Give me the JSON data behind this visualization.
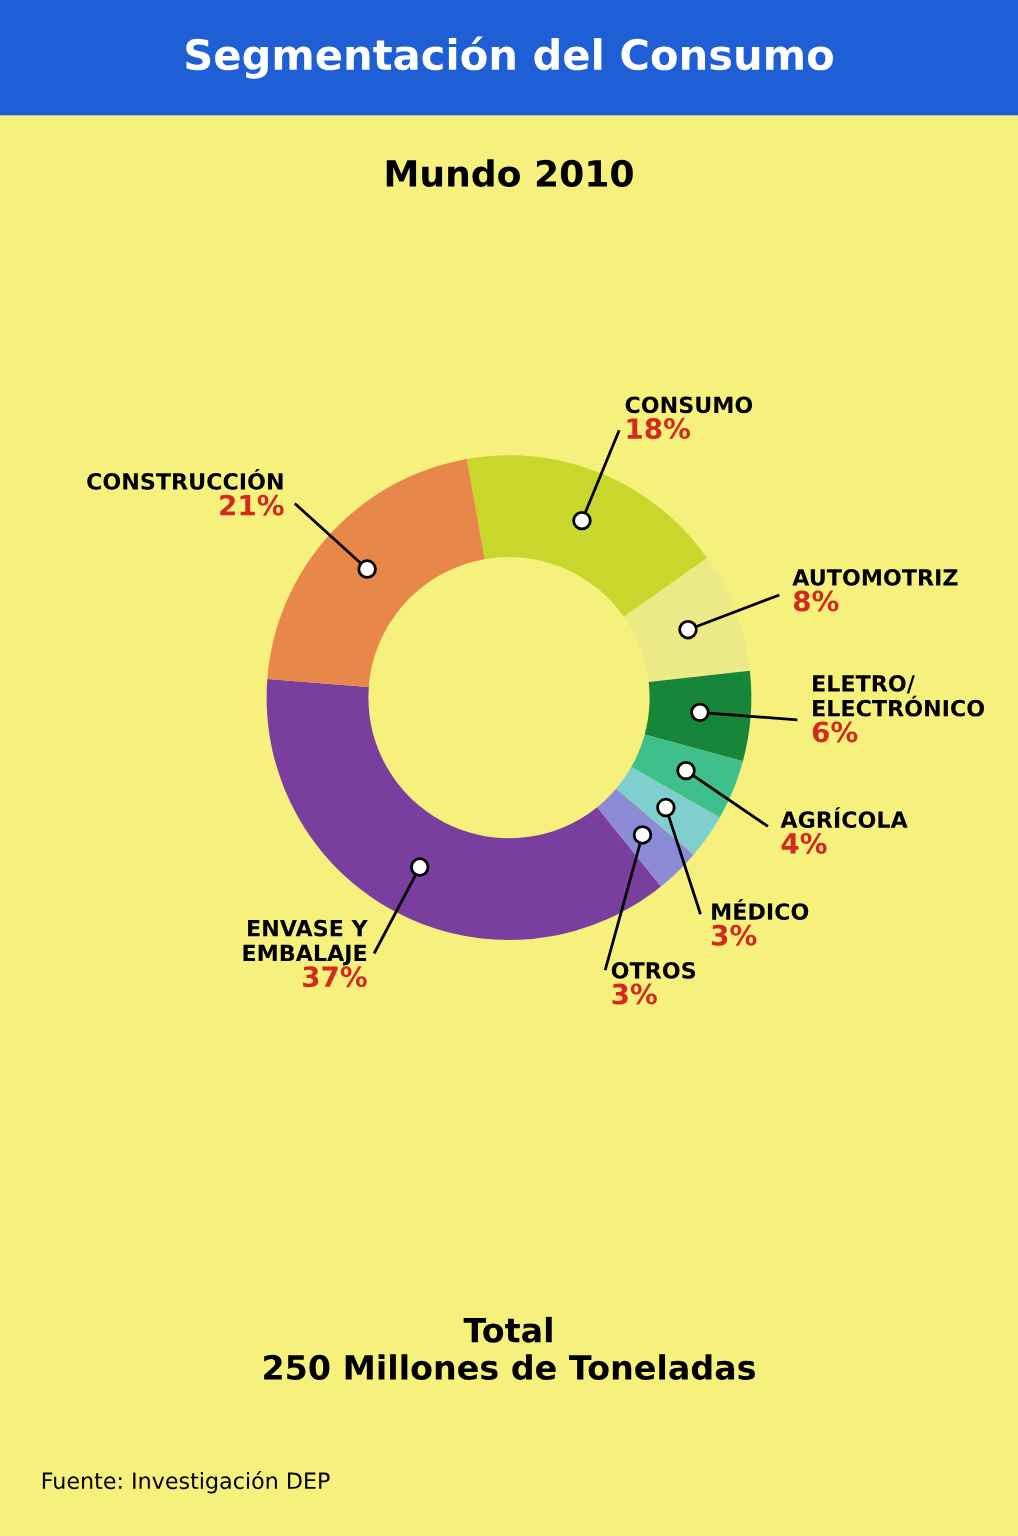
{
  "chart_data": {
    "type": "donut",
    "title": "Segmentación del Consumo",
    "subtitle": "Mundo 2010",
    "categories": [
      "CONSUMO",
      "AUTOMOTRIZ",
      "ELETRO/\nELECTRÓNICO",
      "AGRÍCOLA",
      "MÉDICO",
      "OTROS",
      "ENVASE Y\nEMBALAJE",
      "CONSTRUCCIÓN"
    ],
    "values": [
      18,
      8,
      6,
      4,
      3,
      3,
      37,
      21
    ],
    "value_labels": [
      "18%",
      "8%",
      "6%",
      "4%",
      "3%",
      "3%",
      "37%",
      "21%"
    ],
    "colors": [
      "#c9d62b",
      "#ecea86",
      "#17853a",
      "#3fbf8c",
      "#7fcfcf",
      "#8c8cd6",
      "#7a3f9e",
      "#e8874a"
    ],
    "annotations": [
      "Total\n250 Millones de Toneladas",
      "Fuente: Investigación DEP"
    ]
  }
}
